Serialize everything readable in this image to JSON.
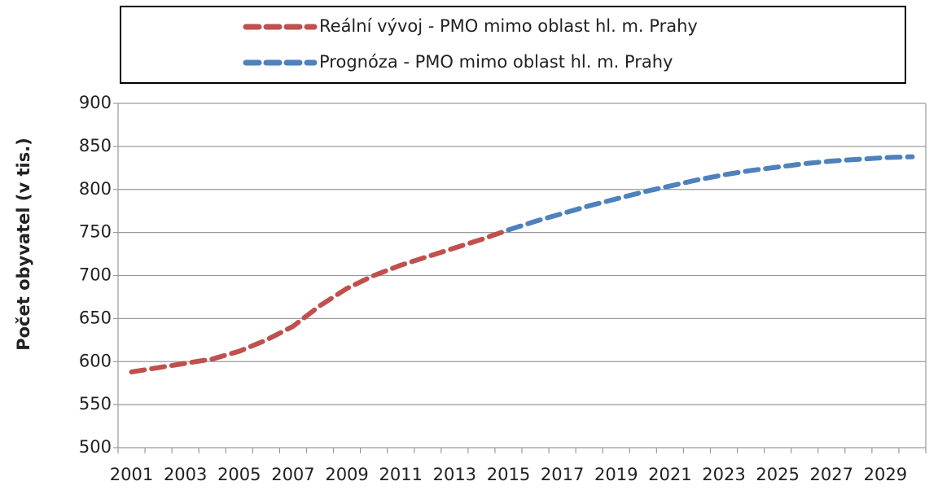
{
  "chart_data": {
    "type": "line",
    "y_axis_label": "Počet obyvatel (v tis.)",
    "categories": [
      "2001",
      null,
      "2003",
      null,
      "2005",
      null,
      "2007",
      null,
      "2009",
      null,
      "2011",
      null,
      "2013",
      null,
      "2015",
      null,
      "2017",
      null,
      "2019",
      null,
      "2021",
      null,
      "2023",
      null,
      "2025",
      null,
      "2027",
      null,
      "2029",
      null
    ],
    "series": [
      {
        "name": "Reální vývoj - PMO mimo oblast hl. m. Prahy",
        "color": "#c0504d",
        "values": [
          588,
          593,
          598,
          603,
          612,
          625,
          641,
          665,
          685,
          700,
          712,
          722,
          732,
          742,
          753,
          null,
          null,
          null,
          null,
          null,
          null,
          null,
          null,
          null,
          null,
          null,
          null,
          null,
          null,
          null
        ]
      },
      {
        "name": "Prognóza -  PMO mimo oblast hl. m. Prahy",
        "color": "#4f81bd",
        "values": [
          null,
          null,
          null,
          null,
          null,
          null,
          null,
          null,
          null,
          null,
          null,
          null,
          null,
          null,
          753,
          763,
          772,
          781,
          789,
          797,
          804,
          811,
          817,
          822,
          826,
          830,
          833,
          835,
          837,
          838
        ]
      }
    ],
    "ylim": [
      500,
      900
    ],
    "yticks": [
      500,
      550,
      600,
      650,
      700,
      750,
      800,
      850,
      900
    ],
    "grid": true,
    "legend": "top"
  }
}
